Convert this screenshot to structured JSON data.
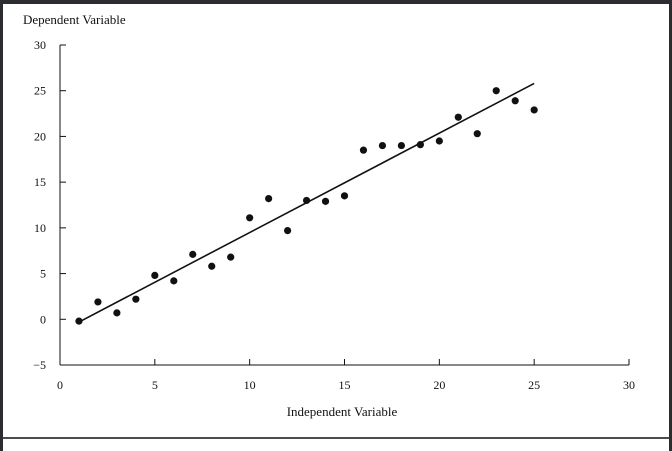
{
  "chart_data": {
    "type": "scatter",
    "xlabel": "Independent Variable",
    "ylabel": "Dependent Variable",
    "xlim": [
      0,
      30
    ],
    "ylim": [
      -5,
      30
    ],
    "x_ticks": [
      0,
      5,
      10,
      15,
      20,
      25,
      30
    ],
    "y_ticks": [
      -5,
      0,
      5,
      10,
      15,
      20,
      25,
      30
    ],
    "y_tick_labels": [
      "−5",
      "0",
      "5",
      "10",
      "15",
      "20",
      "25",
      "30"
    ],
    "grid": false,
    "points": {
      "x": [
        1,
        2,
        3,
        4,
        5,
        6,
        7,
        8,
        9,
        10,
        11,
        12,
        13,
        14,
        15,
        16,
        17,
        18,
        19,
        20,
        21,
        22,
        23,
        24,
        25
      ],
      "y": [
        -0.2,
        1.9,
        0.7,
        2.2,
        4.8,
        4.2,
        7.1,
        5.8,
        6.8,
        11.1,
        13.2,
        9.7,
        13.0,
        12.9,
        13.5,
        18.5,
        19.0,
        19.0,
        19.1,
        19.5,
        22.1,
        20.3,
        25.0,
        23.9,
        22.9
      ]
    },
    "fit_line": {
      "x": [
        1,
        25
      ],
      "y": [
        -0.3,
        25.8
      ]
    },
    "colors": {
      "points": "#111111",
      "line": "#111111"
    }
  }
}
